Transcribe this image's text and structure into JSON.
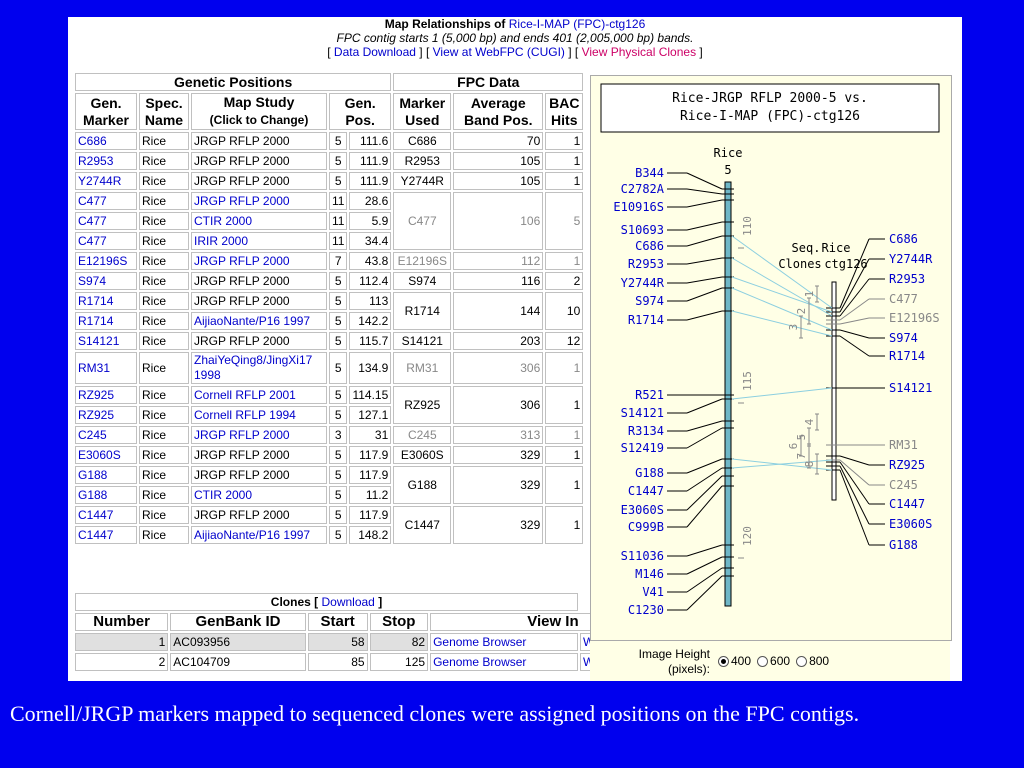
{
  "header": {
    "title_prefix": "Map Relationships of ",
    "title_link": "Rice-I-MAP (FPC)-ctg126",
    "subtitle": "FPC contig starts 1 (5,000 bp) and ends 401 (2,005,000 bp) bands.",
    "link1": "Data Download",
    "link2": "View at WebFPC (CUGI)",
    "link3": "View Physical Clones"
  },
  "genetic": {
    "group1": "Genetic Positions",
    "group2": "FPC Data",
    "cols": {
      "gen_marker": "Gen. Marker",
      "spec": "Spec. Name",
      "map_study": "Map Study",
      "map_study_sub": "(Click to Change)",
      "gen_pos": "Gen. Pos.",
      "marker_used": "Marker Used",
      "avg_band": "Average Band Pos.",
      "bac": "BAC Hits"
    }
  },
  "rows": [
    {
      "m": "C686",
      "s": "Rice",
      "study": "JRGP RFLP 2000",
      "study_link": false,
      "chr": "5",
      "pos": "111.6",
      "mu": "C686",
      "avg": "70",
      "bac": "1",
      "span": 1,
      "g": false
    },
    {
      "m": "R2953",
      "s": "Rice",
      "study": "JRGP RFLP 2000",
      "study_link": false,
      "chr": "5",
      "pos": "111.9",
      "mu": "R2953",
      "avg": "105",
      "bac": "1",
      "span": 1,
      "g": false
    },
    {
      "m": "Y2744R",
      "s": "Rice",
      "study": "JRGP RFLP 2000",
      "study_link": false,
      "chr": "5",
      "pos": "111.9",
      "mu": "Y2744R",
      "avg": "105",
      "bac": "1",
      "span": 1,
      "g": false
    },
    {
      "m": "C477",
      "s": "Rice",
      "study": "JRGP RFLP 2000",
      "study_link": true,
      "chr": "11",
      "pos": "28.6",
      "mu": "C477",
      "avg": "106",
      "bac": "5",
      "span": 3,
      "g": true
    },
    {
      "m": "C477",
      "s": "Rice",
      "study": "CTIR 2000",
      "study_link": true,
      "chr": "11",
      "pos": "5.9",
      "span": 0
    },
    {
      "m": "C477",
      "s": "Rice",
      "study": "IRIR 2000",
      "study_link": true,
      "chr": "11",
      "pos": "34.4",
      "span": 0
    },
    {
      "m": "E12196S",
      "s": "Rice",
      "study": "JRGP RFLP 2000",
      "study_link": true,
      "chr": "7",
      "pos": "43.8",
      "mu": "E12196S",
      "avg": "112",
      "bac": "1",
      "span": 1,
      "g": true
    },
    {
      "m": "S974",
      "s": "Rice",
      "study": "JRGP RFLP 2000",
      "study_link": false,
      "chr": "5",
      "pos": "112.4",
      "mu": "S974",
      "avg": "116",
      "bac": "2",
      "span": 1,
      "g": false
    },
    {
      "m": "R1714",
      "s": "Rice",
      "study": "JRGP RFLP 2000",
      "study_link": false,
      "chr": "5",
      "pos": "113",
      "mu": "R1714",
      "avg": "144",
      "bac": "10",
      "span": 2,
      "g": false
    },
    {
      "m": "R1714",
      "s": "Rice",
      "study": "AijiaoNante/P16 1997",
      "study_link": true,
      "chr": "5",
      "pos": "142.2",
      "span": 0
    },
    {
      "m": "S14121",
      "s": "Rice",
      "study": "JRGP RFLP 2000",
      "study_link": false,
      "chr": "5",
      "pos": "115.7",
      "mu": "S14121",
      "avg": "203",
      "bac": "12",
      "span": 1,
      "g": false
    },
    {
      "m": "RM31",
      "s": "Rice",
      "study": "ZhaiYeQing8/JingXi17 1998",
      "study_link": true,
      "chr": "5",
      "pos": "134.9",
      "mu": "RM31",
      "avg": "306",
      "bac": "1",
      "span": 1,
      "g": true,
      "tall": true
    },
    {
      "m": "RZ925",
      "s": "Rice",
      "study": "Cornell RFLP 2001",
      "study_link": true,
      "chr": "5",
      "pos": "114.15",
      "mu": "RZ925",
      "avg": "306",
      "bac": "1",
      "span": 2,
      "g": false
    },
    {
      "m": "RZ925",
      "s": "Rice",
      "study": "Cornell RFLP 1994",
      "study_link": true,
      "chr": "5",
      "pos": "127.1",
      "span": 0
    },
    {
      "m": "C245",
      "s": "Rice",
      "study": "JRGP RFLP 2000",
      "study_link": true,
      "chr": "3",
      "pos": "31",
      "mu": "C245",
      "avg": "313",
      "bac": "1",
      "span": 1,
      "g": true
    },
    {
      "m": "E3060S",
      "s": "Rice",
      "study": "JRGP RFLP 2000",
      "study_link": false,
      "chr": "5",
      "pos": "117.9",
      "mu": "E3060S",
      "avg": "329",
      "bac": "1",
      "span": 1,
      "g": false
    },
    {
      "m": "G188",
      "s": "Rice",
      "study": "JRGP RFLP 2000",
      "study_link": false,
      "chr": "5",
      "pos": "117.9",
      "mu": "G188",
      "avg": "329",
      "bac": "1",
      "span": 2,
      "g": false
    },
    {
      "m": "G188",
      "s": "Rice",
      "study": "CTIR 2000",
      "study_link": true,
      "chr": "5",
      "pos": "11.2",
      "span": 0
    },
    {
      "m": "C1447",
      "s": "Rice",
      "study": "JRGP RFLP 2000",
      "study_link": false,
      "chr": "5",
      "pos": "117.9",
      "mu": "C1447",
      "avg": "329",
      "bac": "1",
      "span": 2,
      "g": false
    },
    {
      "m": "C1447",
      "s": "Rice",
      "study": "AijiaoNante/P16 1997",
      "study_link": true,
      "chr": "5",
      "pos": "148.2",
      "span": 0
    }
  ],
  "clones": {
    "title": "Clones",
    "download": "Download",
    "cols": {
      "number": "Number",
      "genbank": "GenBank ID",
      "start": "Start",
      "stop": "Stop",
      "view": "View In"
    },
    "rows": [
      {
        "n": "1",
        "id": "AC093956",
        "start": "58",
        "stop": "82",
        "v1": "Genome Browser",
        "v2": "WebFPC (CUGI)"
      },
      {
        "n": "2",
        "id": "AC104709",
        "start": "85",
        "stop": "125",
        "v1": "Genome Browser",
        "v2": "WebFPC (CUGI)"
      }
    ]
  },
  "figure": {
    "title1": "Rice-JRGP RFLP 2000-5 vs.",
    "title2": "Rice-I-MAP (FPC)-ctg126",
    "left_label": "Rice",
    "left_chr": "5",
    "seq_label1": "Seq.",
    "seq_label2": "Clones",
    "right_label1": "Rice",
    "right_label2": "ctg126",
    "left_markers": [
      "B344",
      "C2782A",
      "E10916S",
      "S10693",
      "C686",
      "R2953",
      "Y2744R",
      "S974",
      "R1714",
      "R521",
      "S14121",
      "R3134",
      "S12419",
      "G188",
      "C1447",
      "E3060S",
      "C999B",
      "S11036",
      "M146",
      "V41",
      "C1230"
    ],
    "right_markers": [
      "C686",
      "Y2744R",
      "R2953",
      "C477",
      "E12196S",
      "S974",
      "R1714",
      "S14121",
      "RM31",
      "RZ925",
      "C245",
      "C1447",
      "E3060S",
      "G188"
    ],
    "right_gray": [
      false,
      false,
      false,
      true,
      true,
      false,
      false,
      false,
      true,
      false,
      true,
      false,
      false,
      false
    ],
    "ticks": [
      "110",
      "115",
      "120"
    ],
    "clone_nums": [
      "1",
      "2",
      "3",
      "4",
      "5",
      "6",
      "7",
      "8"
    ]
  },
  "controls": {
    "label1": "Image Height",
    "label2": "(pixels):",
    "options": [
      "400",
      "600",
      "800"
    ],
    "selected": "400"
  },
  "caption": "Cornell/JRGP markers mapped to sequenced clones were assigned positions on the FPC contigs."
}
